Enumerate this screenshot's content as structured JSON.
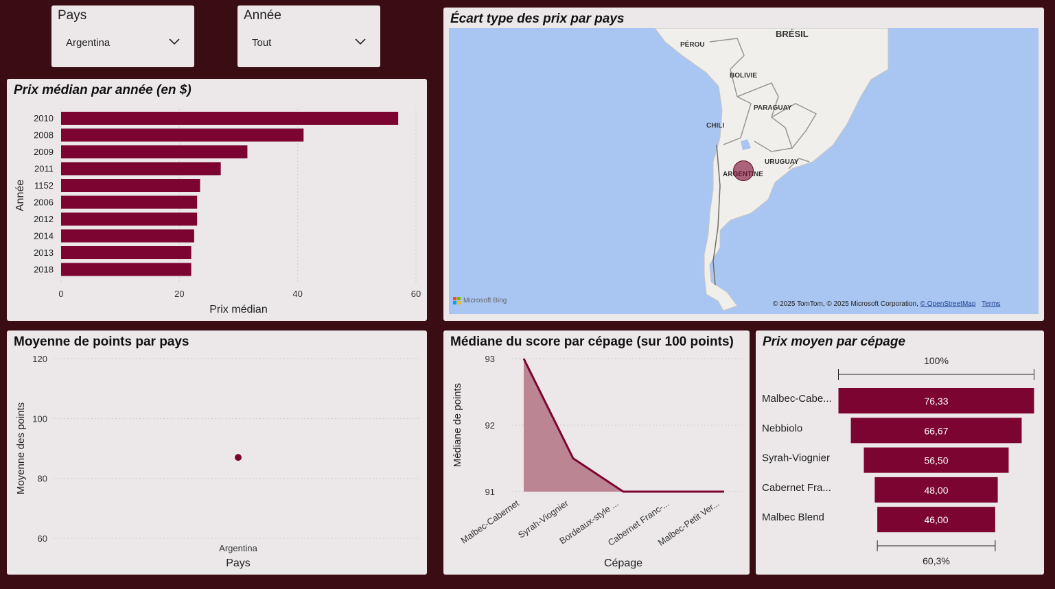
{
  "slicers": {
    "country": {
      "label": "Pays",
      "value": "Argentina"
    },
    "year": {
      "label": "Année",
      "value": "Tout"
    }
  },
  "bar_panel": {
    "title": "Prix médian par année (en $)"
  },
  "map_panel": {
    "title": "Écart type des prix par pays",
    "countries": [
      "BRÉSIL",
      "PÉROU",
      "BOLIVIE",
      "PARAGUAY",
      "CHILI",
      "URUGUAY",
      "ARGENTINE"
    ],
    "logo": "Microsoft Bing",
    "attribution": "© 2025 TomTom, © 2025 Microsoft Corporation,",
    "osm_link": "© OpenStreetMap",
    "terms_link": "Terms"
  },
  "scatter_panel": {
    "title": "Moyenne de points par pays"
  },
  "area_panel": {
    "title": "Médiane du score par cépage (sur 100 points)"
  },
  "funnel_panel": {
    "title": "Prix moyen par cépage"
  },
  "colors": {
    "accent": "#7b0530",
    "area_fill": "#bb8594",
    "background": "#3a0c14",
    "card": "#ece8ea",
    "sea": "#a9c6f2"
  },
  "chart_data": [
    {
      "type": "bar",
      "orientation": "horizontal",
      "title": "Prix médian par année (en $)",
      "categories": [
        "2010",
        "2008",
        "2009",
        "2011",
        "1152",
        "2006",
        "2012",
        "2014",
        "2013",
        "2018"
      ],
      "values": [
        57,
        41,
        31.5,
        27,
        23.5,
        23,
        23,
        22.5,
        22,
        22
      ],
      "xlabel": "Prix médian",
      "ylabel": "Année",
      "xlim": [
        0,
        60
      ],
      "xticks": [
        "0",
        "20",
        "40",
        "60"
      ]
    },
    {
      "type": "scatter",
      "title": "Moyenne de points par pays",
      "categories": [
        "Argentina"
      ],
      "values": [
        87
      ],
      "xlabel": "Pays",
      "ylabel": "Moyenne des points",
      "ylim": [
        60,
        120
      ],
      "yticks": [
        "60",
        "80",
        "100",
        "120"
      ]
    },
    {
      "type": "area",
      "title": "Médiane du score par cépage (sur 100 points)",
      "categories": [
        "Malbec-Cabernet",
        "Syrah-Viognier",
        "Bordeaux-style ...",
        "Cabernet Franc-...",
        "Malbec-Petit Ver..."
      ],
      "values": [
        93,
        91.5,
        91,
        91,
        91
      ],
      "xlabel": "Cépage",
      "ylabel": "Médiane de points",
      "ylim": [
        91,
        93
      ],
      "yticks": [
        "91",
        "92",
        "93"
      ]
    },
    {
      "type": "funnel",
      "title": "Prix moyen par cépage",
      "categories": [
        "Malbec-Cabe...",
        "Nebbiolo",
        "Syrah-Viognier",
        "Cabernet Fra...",
        "Malbec Blend"
      ],
      "values": [
        76.33,
        66.67,
        56.5,
        48.0,
        46.0
      ],
      "labels": [
        "76,33",
        "66,67",
        "56,50",
        "48,00",
        "46,00"
      ],
      "top_pct": "100%",
      "bottom_pct": "60,3%"
    }
  ]
}
